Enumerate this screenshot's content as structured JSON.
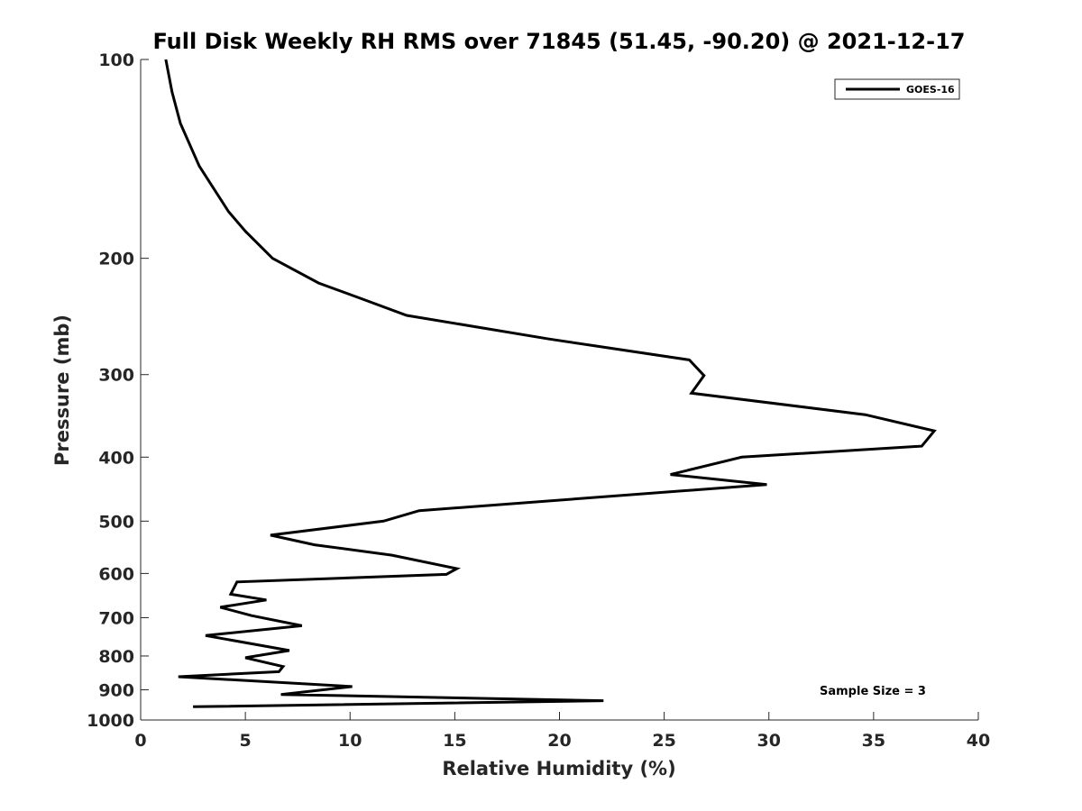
{
  "chart_data": {
    "type": "line",
    "title": "Full Disk Weekly RH RMS over 71845 (51.45, -90.20) @ 2021-12-17",
    "xlabel": "Relative Humidity (%)",
    "ylabel": "Pressure (mb)",
    "xlim": [
      0,
      40
    ],
    "ylim": [
      100,
      1000
    ],
    "y_scale": "log",
    "y_reversed": true,
    "x_ticks": [
      "0",
      "5",
      "10",
      "15",
      "20",
      "25",
      "30",
      "35",
      "40"
    ],
    "y_ticks": [
      "100",
      "200",
      "300",
      "400",
      "500",
      "600",
      "700",
      "800",
      "900",
      "1000"
    ],
    "grid": false,
    "legend_position": "top-right",
    "annotation": "Sample Size = 3",
    "line_color": "#000000",
    "series": [
      {
        "name": "GOES-16",
        "x": [
          1.2,
          1.5,
          1.9,
          2.8,
          4.2,
          5.0,
          6.3,
          8.5,
          10.5,
          12.7,
          19.5,
          26.2,
          26.9,
          26.3,
          34.6,
          37.9,
          37.3,
          28.7,
          25.3,
          29.9,
          13.3,
          11.6,
          6.2,
          8.3,
          12.0,
          15.1,
          14.6,
          4.6,
          4.3,
          6.0,
          3.8,
          5.3,
          7.7,
          3.1,
          7.1,
          5.0,
          6.8,
          6.6,
          1.8,
          10.1,
          6.7,
          22.1,
          2.5
        ],
        "y": [
          100,
          112,
          125,
          145,
          170,
          182,
          200,
          218,
          230,
          244,
          265,
          285,
          301,
          320,
          345,
          365,
          385,
          400,
          425,
          440,
          482,
          500,
          525,
          543,
          563,
          590,
          602,
          618,
          645,
          658,
          675,
          695,
          720,
          745,
          785,
          805,
          830,
          845,
          860,
          890,
          915,
          935,
          955
        ]
      }
    ]
  }
}
